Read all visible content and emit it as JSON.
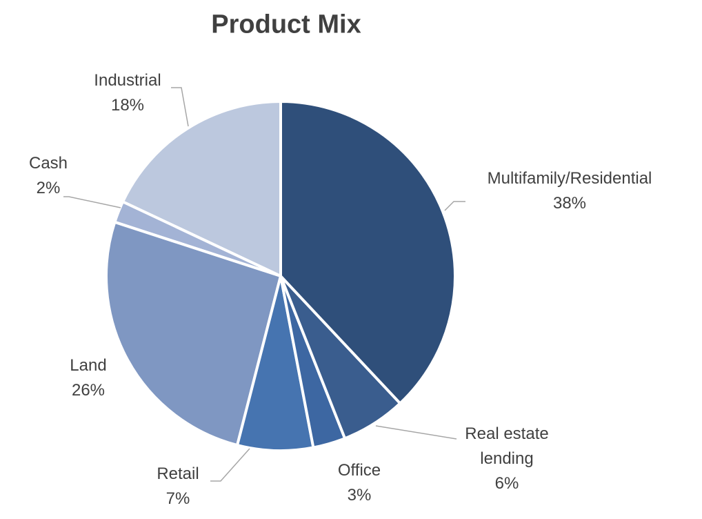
{
  "chart_data": {
    "type": "pie",
    "title": "Product Mix",
    "categories": [
      "Multifamily/Residential",
      "Real estate lending",
      "Office",
      "Retail",
      "Land",
      "Cash",
      "Industrial"
    ],
    "values": [
      38,
      6,
      3,
      7,
      26,
      2,
      18
    ],
    "value_labels": [
      "38%",
      "6%",
      "3%",
      "7%",
      "26%",
      "2%",
      "18%"
    ],
    "colors": [
      "#2f4f7a",
      "#3a5d8e",
      "#3d67a2",
      "#4674b0",
      "#7f97c2",
      "#a3b3d5",
      "#bcc8de"
    ]
  }
}
